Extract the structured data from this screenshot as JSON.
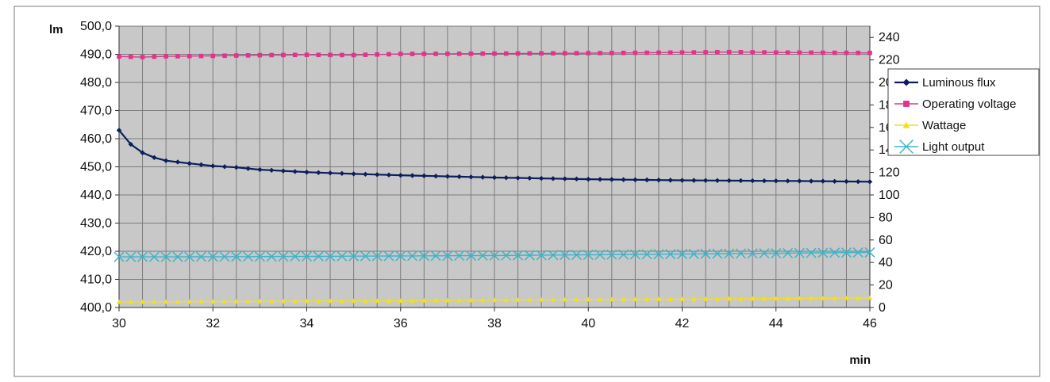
{
  "chart_data": {
    "type": "line",
    "xlabel": "min",
    "ylabel_left": "lm",
    "ylabel_right": "",
    "x_ticks": [
      "30",
      "32",
      "34",
      "36",
      "38",
      "40",
      "42",
      "44",
      "46"
    ],
    "xlim": [
      30,
      46
    ],
    "y_left_ticks": [
      "400,0",
      "410,0",
      "420,0",
      "430,0",
      "440,0",
      "450,0",
      "460,0",
      "470,0",
      "480,0",
      "490,0",
      "500,0"
    ],
    "ylim_left": [
      400,
      500
    ],
    "y_right_ticks": [
      "0",
      "20",
      "40",
      "60",
      "80",
      "100",
      "120",
      "140",
      "160",
      "180",
      "200",
      "220",
      "240"
    ],
    "ylim_right": [
      0,
      250
    ],
    "grid": true,
    "legend_position": "right",
    "plot_background": "#c8c8c8",
    "series": [
      {
        "name": "Luminous flux",
        "axis": "left",
        "color": "#0a1f5c",
        "marker": "diamond",
        "anchors": [
          [
            30,
            463
          ],
          [
            30.25,
            458
          ],
          [
            30.5,
            455
          ],
          [
            30.75,
            453.3
          ],
          [
            31,
            452.2
          ],
          [
            31.5,
            451.2
          ],
          [
            32,
            450.3
          ],
          [
            32.5,
            449.8
          ],
          [
            33,
            449
          ],
          [
            34,
            448.1
          ],
          [
            35,
            447.5
          ],
          [
            36,
            447
          ],
          [
            37,
            446.6
          ],
          [
            38,
            446.2
          ],
          [
            39,
            445.9
          ],
          [
            40,
            445.6
          ],
          [
            41,
            445.4
          ],
          [
            42,
            445.2
          ],
          [
            43,
            445.1
          ],
          [
            44,
            445
          ],
          [
            45,
            444.9
          ],
          [
            46,
            444.7
          ]
        ]
      },
      {
        "name": "Operating voltage",
        "axis": "right",
        "color": "#e0358c",
        "marker": "square",
        "anchors": [
          [
            30,
            223
          ],
          [
            30.5,
            222.5
          ],
          [
            31,
            223.2
          ],
          [
            32,
            223.6
          ],
          [
            33,
            224.2
          ],
          [
            34,
            224.5
          ],
          [
            35,
            224.3
          ],
          [
            36,
            225.3
          ],
          [
            38,
            225.6
          ],
          [
            40,
            226
          ],
          [
            42,
            226.6
          ],
          [
            43,
            227
          ],
          [
            44,
            226.6
          ],
          [
            46,
            226.2
          ]
        ]
      },
      {
        "name": "Wattage",
        "axis": "right",
        "color": "#f0e020",
        "marker": "triangle",
        "anchors": [
          [
            30,
            5
          ],
          [
            33,
            5.5
          ],
          [
            36,
            6
          ],
          [
            39,
            7
          ],
          [
            42,
            7.5
          ],
          [
            46,
            8.5
          ]
        ]
      },
      {
        "name": "Light output",
        "axis": "right",
        "color": "#3fb3c8",
        "marker": "x",
        "anchors": [
          [
            30,
            45
          ],
          [
            31,
            45
          ],
          [
            34,
            45.4
          ],
          [
            38,
            46.2
          ],
          [
            42,
            47.5
          ],
          [
            46,
            49
          ]
        ]
      }
    ]
  }
}
